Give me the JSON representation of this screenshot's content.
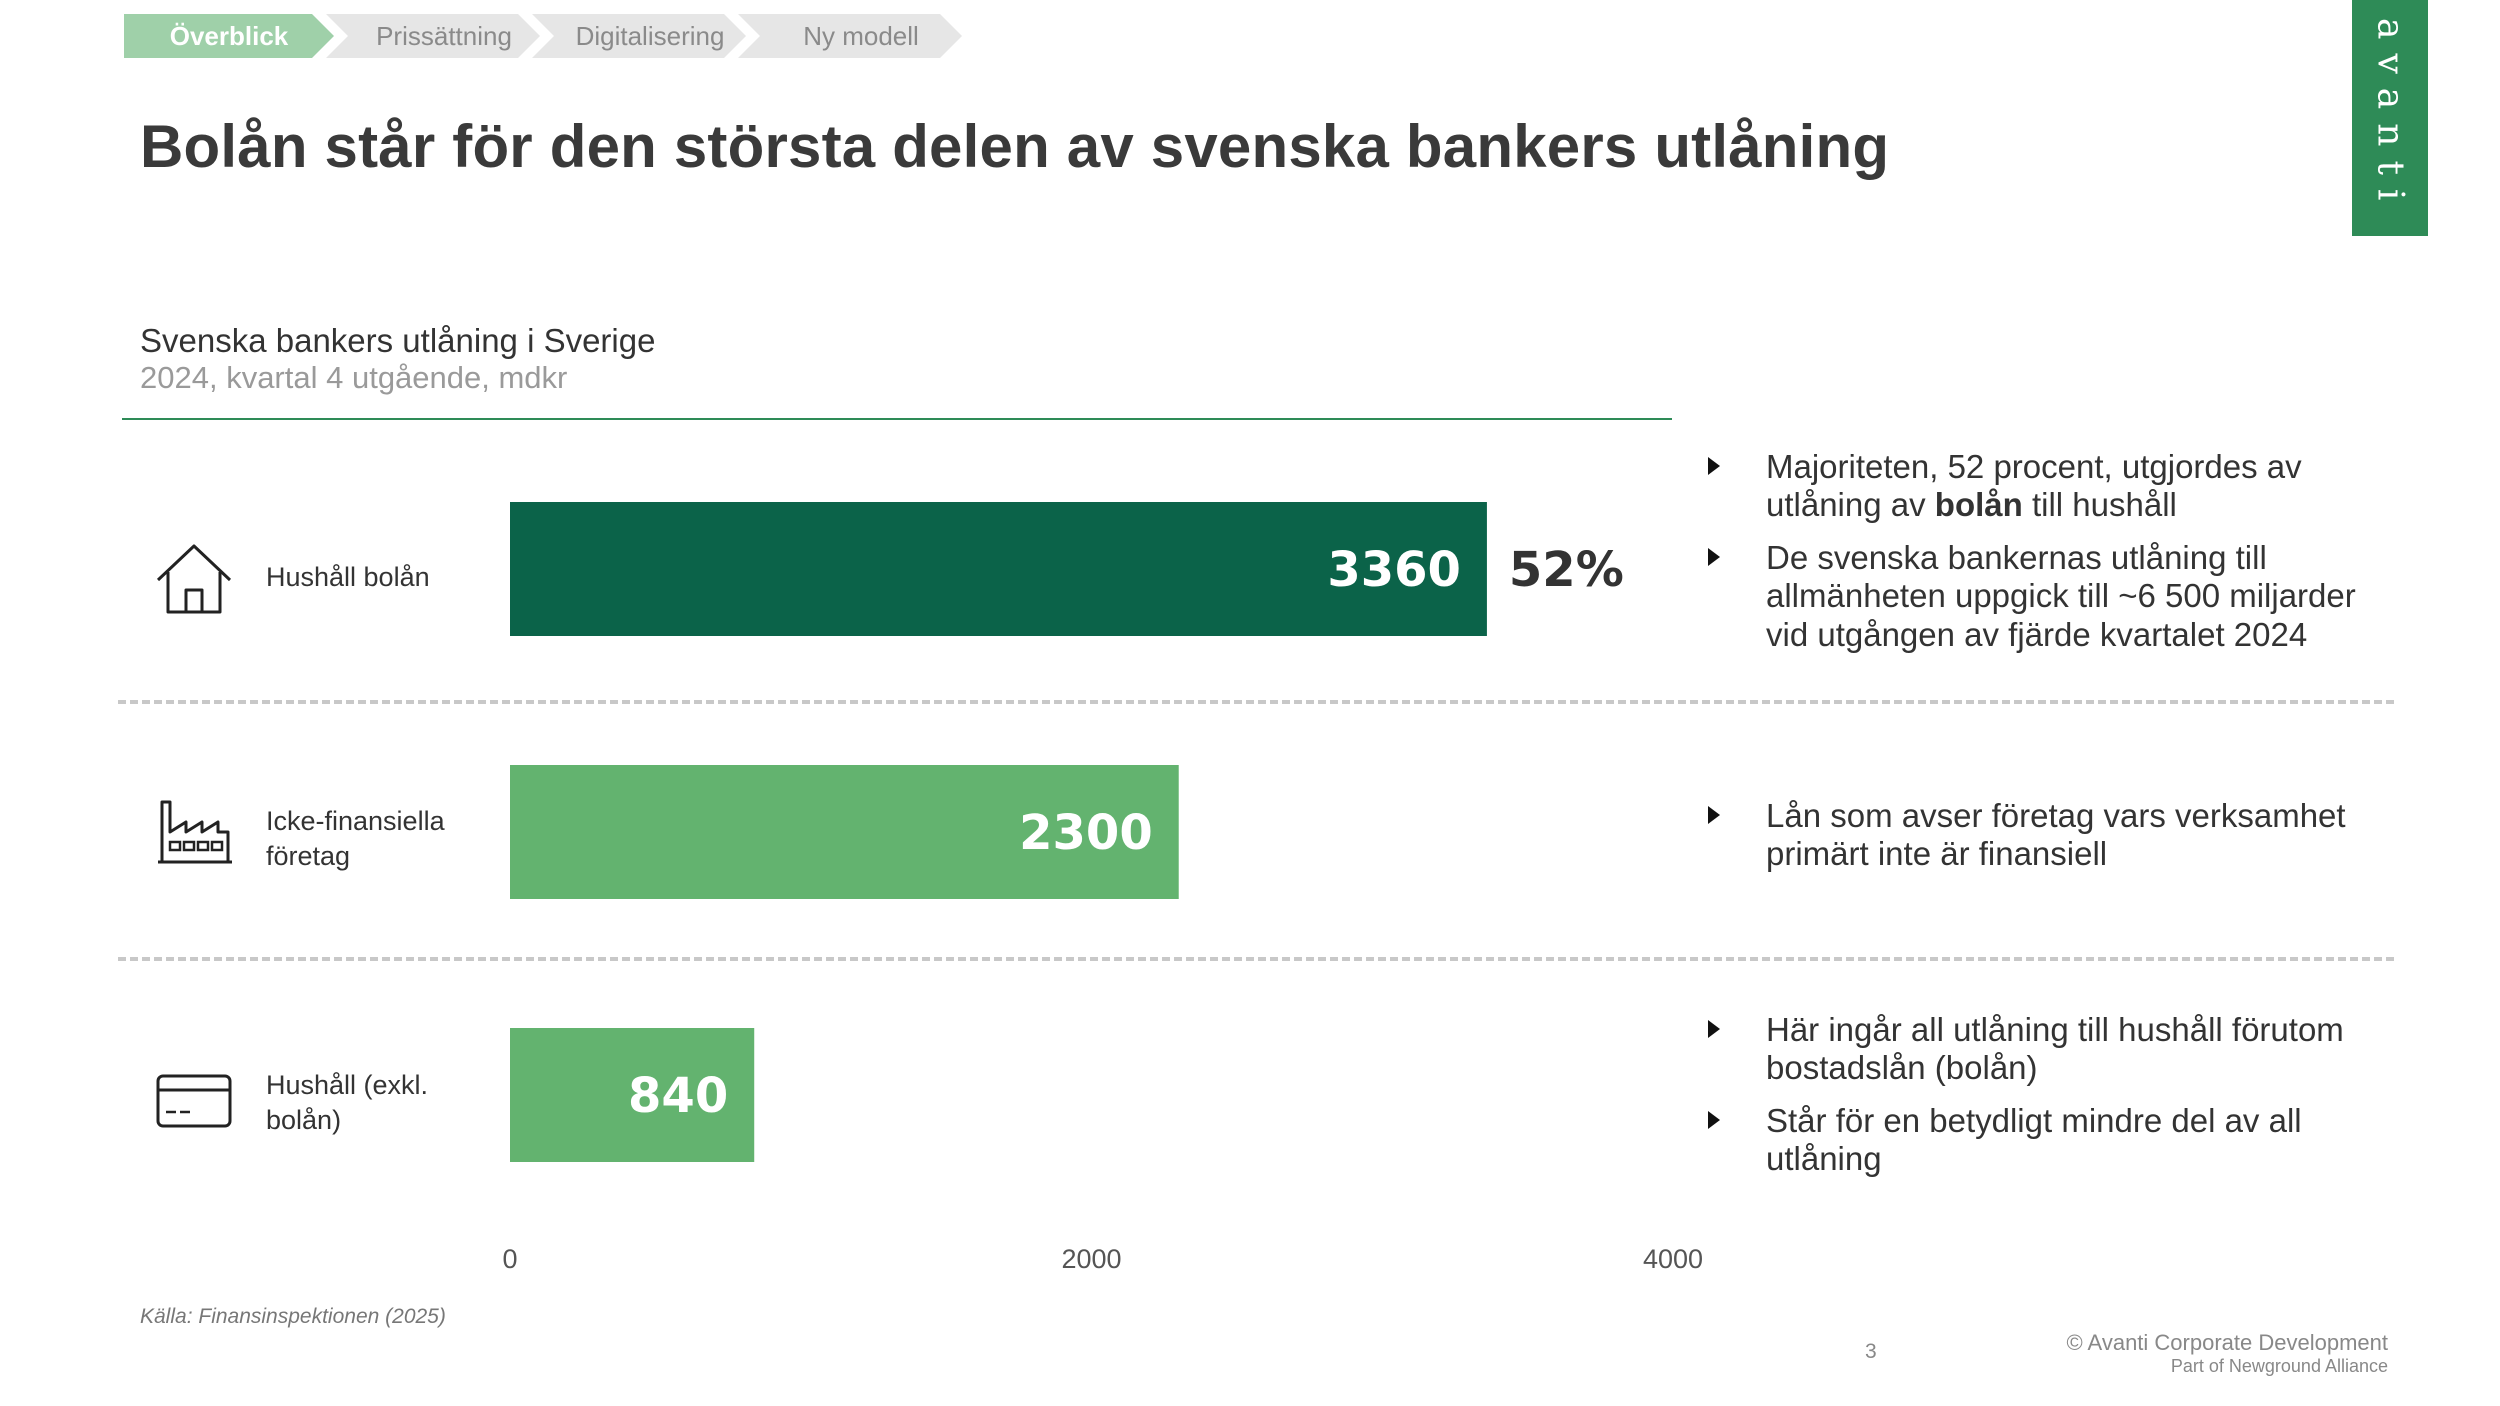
{
  "breadcrumb": [
    {
      "label": "Överblick",
      "active": true
    },
    {
      "label": "Prissättning",
      "active": false
    },
    {
      "label": "Digitalisering",
      "active": false
    },
    {
      "label": "Ny modell",
      "active": false
    }
  ],
  "title": "Bolån står för den största delen av svenska bankers utlåning",
  "logo": "avanti",
  "chart_header": {
    "title": "Svenska bankers utlåning i Sverige",
    "subtitle": "2024, kvartal 4 utgående, mdkr"
  },
  "rows": [
    {
      "label": "Hushåll bolån",
      "icon": "house-icon",
      "bullets": [
        {
          "pre": "Majoriteten, 52 procent, utgjordes av utlåning av ",
          "bold": "bolån",
          "post": " till hushåll"
        },
        {
          "pre": "De svenska bankernas utlåning till allmänheten uppgick till ~6 500 miljarder vid utgången av fjärde kvartalet 2024",
          "bold": "",
          "post": ""
        }
      ]
    },
    {
      "label": "Icke-finansiella företag",
      "icon": "factory-icon",
      "bullets": [
        {
          "pre": "Lån som avser företag vars verksamhet primärt inte är finansiell",
          "bold": "",
          "post": ""
        }
      ]
    },
    {
      "label": "Hushåll (exkl. bolån)",
      "icon": "credit-card-icon",
      "bullets": [
        {
          "pre": "Här ingår all utlåning till hushåll förutom bostadslån (bolån)",
          "bold": "",
          "post": ""
        },
        {
          "pre": "Står för en betydligt mindre del av all utlåning",
          "bold": "",
          "post": ""
        }
      ]
    }
  ],
  "chart_data": {
    "type": "bar",
    "orientation": "horizontal",
    "categories": [
      "Hushåll bolån",
      "Icke-finansiella företag",
      "Hushåll (exkl. bolån)"
    ],
    "values": [
      3360,
      2300,
      840
    ],
    "value_labels": [
      "3360",
      "2300",
      "840"
    ],
    "annotations": [
      {
        "category": "Hushåll bolån",
        "text": "52%"
      }
    ],
    "colors": [
      "#0b6349",
      "#63b36f",
      "#63b36f"
    ],
    "xlim": [
      0,
      4000
    ],
    "xticks": [
      0,
      2000,
      4000
    ],
    "title": "Svenska bankers utlåning i Sverige",
    "subtitle": "2024, kvartal 4 utgående, mdkr"
  },
  "source": "Källa: Finansinspektionen (2025)",
  "page_number": "3",
  "footer": {
    "copyright": "© Avanti Corporate Development",
    "alliance": "Part of Newground Alliance"
  },
  "colors": {
    "accent": "#2e8b57",
    "dark_green": "#0b6349",
    "light_green": "#63b36f",
    "crumb_active": "#9fd0a9",
    "crumb_inactive": "#e6e6e6"
  }
}
